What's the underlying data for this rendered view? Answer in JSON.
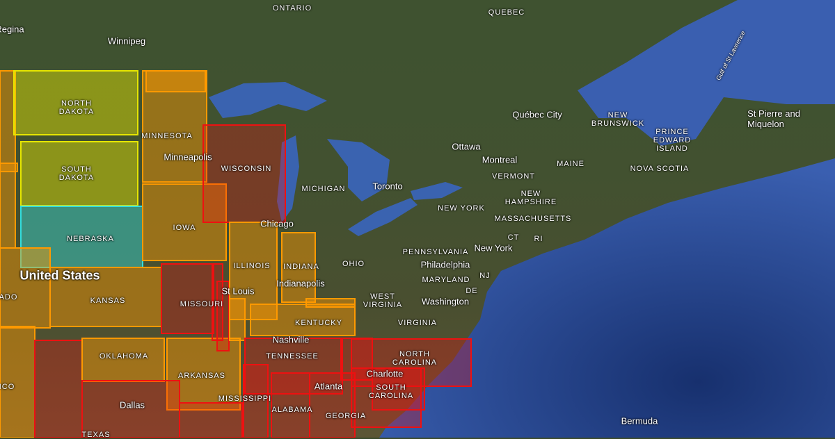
{
  "colors": {
    "ocean": "#2f4f9a",
    "land": "#3f5230",
    "lake": "#3a63b0",
    "yellow": "#e6e600",
    "orange": "#ff9900",
    "red": "#ee1111",
    "cyan": "#33dddd"
  },
  "country": "United States",
  "states": {
    "north_dakota": "NORTH\nDAKOTA",
    "south_dakota": "SOUTH\nDAKOTA",
    "nebraska": "NEBRASKA",
    "kansas": "KANSAS",
    "oklahoma": "OKLAHOMA",
    "texas": "TEXAS",
    "minnesota": "MINNESOTA",
    "iowa": "IOWA",
    "missouri": "MISSOURI",
    "arkansas": "ARKANSAS",
    "wisconsin": "WISCONSIN",
    "illinois": "ILLINOIS",
    "indiana": "INDIANA",
    "kentucky": "KENTUCKY",
    "tennessee": "TENNESSEE",
    "mississippi": "MISSISSIPPI",
    "alabama": "ALABAMA",
    "georgia": "GEORGIA",
    "south_carolina": "SOUTH\nCAROLINA",
    "north_carolina": "NORTH\nCAROLINA",
    "michigan": "MICHIGAN",
    "ohio": "OHIO",
    "west_virginia": "WEST\nVIRGINIA",
    "virginia": "VIRGINIA",
    "maryland": "MARYLAND",
    "de": "DE",
    "nj": "NJ",
    "pennsylvania": "PENNSYLVANIA",
    "new_york": "NEW YORK",
    "vermont": "VERMONT",
    "new_hampshire": "NEW\nHAMPSHIRE",
    "massachusetts": "MASSACHUSETTS",
    "ct": "CT",
    "ri": "RI",
    "maine": "MAINE",
    "colorado": "ADO",
    "new_mexico": "ICO"
  },
  "provinces": {
    "ontario": "ONTARIO",
    "quebec": "QUEBEC",
    "new_brunswick": "NEW\nBRUNSWICK",
    "pei": "PRINCE\nEDWARD\nISLAND",
    "nova_scotia": "NOVA SCOTIA"
  },
  "cities": {
    "regina": "Regina",
    "winnipeg": "Winnipeg",
    "minneapolis": "Minneapolis",
    "chicago": "Chicago",
    "st_louis": "St Louis",
    "indianapolis": "Indianapolis",
    "nashville": "Nashville",
    "atlanta": "Atlanta",
    "charlotte": "Charlotte",
    "dallas": "Dallas",
    "toronto": "Toronto",
    "ottawa": "Ottawa",
    "montreal": "Montreal",
    "quebec_city": "Québec City",
    "new_york": "New York",
    "philadelphia": "Philadelphia",
    "washington": "Washington",
    "st_pierre": "St Pierre and\nMiquelon",
    "bermuda": "Bermuda",
    "gulf": "Gulf of St Lawrence"
  }
}
